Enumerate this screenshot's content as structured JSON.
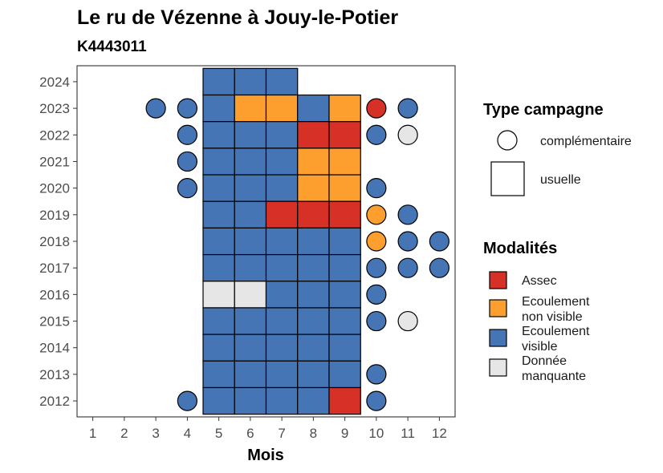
{
  "chart_data": {
    "type": "heatmap",
    "title": "Le ru de Vézenne à Jouy-le-Potier",
    "subtitle": "K4443011",
    "xlabel": "Mois",
    "ylabel": "",
    "x": [
      1,
      2,
      3,
      4,
      5,
      6,
      7,
      8,
      9,
      10,
      11,
      12
    ],
    "y": [
      2012,
      2013,
      2014,
      2015,
      2016,
      2017,
      2018,
      2019,
      2020,
      2021,
      2022,
      2023,
      2024
    ],
    "xlim": [
      0.5,
      12.5
    ],
    "ylim": [
      2011.4,
      2024.6
    ],
    "grid": false,
    "colors": {
      "assec": "#d73027",
      "ecoulement_non_visible": "#fd9f2e",
      "ecoulement_visible": "#4575b4",
      "donnee_manquante": "#e6e6e6"
    },
    "legend": {
      "placement": "right",
      "shape_title": "Type campagne",
      "shapes": [
        {
          "key": "complementaire",
          "label": "complémentaire"
        },
        {
          "key": "usuelle",
          "label": "usuelle"
        }
      ],
      "fill_title": "Modalités",
      "fills": [
        {
          "key": "assec",
          "label_lines": [
            "Assec"
          ]
        },
        {
          "key": "ecoulement_non_visible",
          "label_lines": [
            "Ecoulement",
            "non visible"
          ]
        },
        {
          "key": "ecoulement_visible",
          "label_lines": [
            "Ecoulement",
            "visible"
          ]
        },
        {
          "key": "donnee_manquante",
          "label_lines": [
            "Donnée",
            "manquante"
          ]
        }
      ]
    },
    "points": [
      {
        "year": 2024,
        "month": 5,
        "type": "usuelle",
        "modalite": "ecoulement_visible"
      },
      {
        "year": 2024,
        "month": 6,
        "type": "usuelle",
        "modalite": "ecoulement_visible"
      },
      {
        "year": 2024,
        "month": 7,
        "type": "usuelle",
        "modalite": "ecoulement_visible"
      },
      {
        "year": 2023,
        "month": 3,
        "type": "complementaire",
        "modalite": "ecoulement_visible"
      },
      {
        "year": 2023,
        "month": 4,
        "type": "complementaire",
        "modalite": "ecoulement_visible"
      },
      {
        "year": 2023,
        "month": 5,
        "type": "usuelle",
        "modalite": "ecoulement_visible"
      },
      {
        "year": 2023,
        "month": 6,
        "type": "usuelle",
        "modalite": "ecoulement_non_visible"
      },
      {
        "year": 2023,
        "month": 7,
        "type": "usuelle",
        "modalite": "ecoulement_non_visible"
      },
      {
        "year": 2023,
        "month": 8,
        "type": "usuelle",
        "modalite": "ecoulement_visible"
      },
      {
        "year": 2023,
        "month": 9,
        "type": "usuelle",
        "modalite": "ecoulement_non_visible"
      },
      {
        "year": 2023,
        "month": 10,
        "type": "complementaire",
        "modalite": "assec"
      },
      {
        "year": 2023,
        "month": 11,
        "type": "complementaire",
        "modalite": "ecoulement_visible"
      },
      {
        "year": 2022,
        "month": 4,
        "type": "complementaire",
        "modalite": "ecoulement_visible"
      },
      {
        "year": 2022,
        "month": 5,
        "type": "usuelle",
        "modalite": "ecoulement_visible"
      },
      {
        "year": 2022,
        "month": 6,
        "type": "usuelle",
        "modalite": "ecoulement_visible"
      },
      {
        "year": 2022,
        "month": 7,
        "type": "usuelle",
        "modalite": "ecoulement_visible"
      },
      {
        "year": 2022,
        "month": 8,
        "type": "usuelle",
        "modalite": "assec"
      },
      {
        "year": 2022,
        "month": 9,
        "type": "usuelle",
        "modalite": "assec"
      },
      {
        "year": 2022,
        "month": 10,
        "type": "complementaire",
        "modalite": "ecoulement_visible"
      },
      {
        "year": 2022,
        "month": 11,
        "type": "complementaire",
        "modalite": "donnee_manquante"
      },
      {
        "year": 2021,
        "month": 4,
        "type": "complementaire",
        "modalite": "ecoulement_visible"
      },
      {
        "year": 2021,
        "month": 5,
        "type": "usuelle",
        "modalite": "ecoulement_visible"
      },
      {
        "year": 2021,
        "month": 6,
        "type": "usuelle",
        "modalite": "ecoulement_visible"
      },
      {
        "year": 2021,
        "month": 7,
        "type": "usuelle",
        "modalite": "ecoulement_visible"
      },
      {
        "year": 2021,
        "month": 8,
        "type": "usuelle",
        "modalite": "ecoulement_non_visible"
      },
      {
        "year": 2021,
        "month": 9,
        "type": "usuelle",
        "modalite": "ecoulement_non_visible"
      },
      {
        "year": 2020,
        "month": 4,
        "type": "complementaire",
        "modalite": "ecoulement_visible"
      },
      {
        "year": 2020,
        "month": 5,
        "type": "usuelle",
        "modalite": "ecoulement_visible"
      },
      {
        "year": 2020,
        "month": 6,
        "type": "usuelle",
        "modalite": "ecoulement_visible"
      },
      {
        "year": 2020,
        "month": 7,
        "type": "usuelle",
        "modalite": "ecoulement_visible"
      },
      {
        "year": 2020,
        "month": 8,
        "type": "usuelle",
        "modalite": "ecoulement_non_visible"
      },
      {
        "year": 2020,
        "month": 9,
        "type": "usuelle",
        "modalite": "ecoulement_non_visible"
      },
      {
        "year": 2020,
        "month": 10,
        "type": "complementaire",
        "modalite": "ecoulement_visible"
      },
      {
        "year": 2019,
        "month": 5,
        "type": "usuelle",
        "modalite": "ecoulement_visible"
      },
      {
        "year": 2019,
        "month": 6,
        "type": "usuelle",
        "modalite": "ecoulement_visible"
      },
      {
        "year": 2019,
        "month": 7,
        "type": "usuelle",
        "modalite": "assec"
      },
      {
        "year": 2019,
        "month": 8,
        "type": "usuelle",
        "modalite": "assec"
      },
      {
        "year": 2019,
        "month": 9,
        "type": "usuelle",
        "modalite": "assec"
      },
      {
        "year": 2019,
        "month": 10,
        "type": "complementaire",
        "modalite": "ecoulement_non_visible"
      },
      {
        "year": 2019,
        "month": 11,
        "type": "complementaire",
        "modalite": "ecoulement_visible"
      },
      {
        "year": 2018,
        "month": 5,
        "type": "usuelle",
        "modalite": "ecoulement_visible"
      },
      {
        "year": 2018,
        "month": 6,
        "type": "usuelle",
        "modalite": "ecoulement_visible"
      },
      {
        "year": 2018,
        "month": 7,
        "type": "usuelle",
        "modalite": "ecoulement_visible"
      },
      {
        "year": 2018,
        "month": 8,
        "type": "usuelle",
        "modalite": "ecoulement_visible"
      },
      {
        "year": 2018,
        "month": 9,
        "type": "usuelle",
        "modalite": "ecoulement_visible"
      },
      {
        "year": 2018,
        "month": 10,
        "type": "complementaire",
        "modalite": "ecoulement_non_visible"
      },
      {
        "year": 2018,
        "month": 11,
        "type": "complementaire",
        "modalite": "ecoulement_visible"
      },
      {
        "year": 2018,
        "month": 12,
        "type": "complementaire",
        "modalite": "ecoulement_visible"
      },
      {
        "year": 2017,
        "month": 5,
        "type": "usuelle",
        "modalite": "ecoulement_visible"
      },
      {
        "year": 2017,
        "month": 6,
        "type": "usuelle",
        "modalite": "ecoulement_visible"
      },
      {
        "year": 2017,
        "month": 7,
        "type": "usuelle",
        "modalite": "ecoulement_visible"
      },
      {
        "year": 2017,
        "month": 8,
        "type": "usuelle",
        "modalite": "ecoulement_visible"
      },
      {
        "year": 2017,
        "month": 9,
        "type": "usuelle",
        "modalite": "ecoulement_visible"
      },
      {
        "year": 2017,
        "month": 10,
        "type": "complementaire",
        "modalite": "ecoulement_visible"
      },
      {
        "year": 2017,
        "month": 11,
        "type": "complementaire",
        "modalite": "ecoulement_visible"
      },
      {
        "year": 2017,
        "month": 12,
        "type": "complementaire",
        "modalite": "ecoulement_visible"
      },
      {
        "year": 2016,
        "month": 5,
        "type": "usuelle",
        "modalite": "donnee_manquante"
      },
      {
        "year": 2016,
        "month": 6,
        "type": "usuelle",
        "modalite": "donnee_manquante"
      },
      {
        "year": 2016,
        "month": 7,
        "type": "usuelle",
        "modalite": "ecoulement_visible"
      },
      {
        "year": 2016,
        "month": 8,
        "type": "usuelle",
        "modalite": "ecoulement_visible"
      },
      {
        "year": 2016,
        "month": 9,
        "type": "usuelle",
        "modalite": "ecoulement_visible"
      },
      {
        "year": 2016,
        "month": 10,
        "type": "complementaire",
        "modalite": "ecoulement_visible"
      },
      {
        "year": 2015,
        "month": 5,
        "type": "usuelle",
        "modalite": "ecoulement_visible"
      },
      {
        "year": 2015,
        "month": 6,
        "type": "usuelle",
        "modalite": "ecoulement_visible"
      },
      {
        "year": 2015,
        "month": 7,
        "type": "usuelle",
        "modalite": "ecoulement_visible"
      },
      {
        "year": 2015,
        "month": 8,
        "type": "usuelle",
        "modalite": "ecoulement_visible"
      },
      {
        "year": 2015,
        "month": 9,
        "type": "usuelle",
        "modalite": "ecoulement_visible"
      },
      {
        "year": 2015,
        "month": 10,
        "type": "complementaire",
        "modalite": "ecoulement_visible"
      },
      {
        "year": 2015,
        "month": 11,
        "type": "complementaire",
        "modalite": "donnee_manquante"
      },
      {
        "year": 2014,
        "month": 5,
        "type": "usuelle",
        "modalite": "ecoulement_visible"
      },
      {
        "year": 2014,
        "month": 6,
        "type": "usuelle",
        "modalite": "ecoulement_visible"
      },
      {
        "year": 2014,
        "month": 7,
        "type": "usuelle",
        "modalite": "ecoulement_visible"
      },
      {
        "year": 2014,
        "month": 8,
        "type": "usuelle",
        "modalite": "ecoulement_visible"
      },
      {
        "year": 2014,
        "month": 9,
        "type": "usuelle",
        "modalite": "ecoulement_visible"
      },
      {
        "year": 2013,
        "month": 5,
        "type": "usuelle",
        "modalite": "ecoulement_visible"
      },
      {
        "year": 2013,
        "month": 6,
        "type": "usuelle",
        "modalite": "ecoulement_visible"
      },
      {
        "year": 2013,
        "month": 7,
        "type": "usuelle",
        "modalite": "ecoulement_visible"
      },
      {
        "year": 2013,
        "month": 8,
        "type": "usuelle",
        "modalite": "ecoulement_visible"
      },
      {
        "year": 2013,
        "month": 9,
        "type": "usuelle",
        "modalite": "ecoulement_visible"
      },
      {
        "year": 2013,
        "month": 10,
        "type": "complementaire",
        "modalite": "ecoulement_visible"
      },
      {
        "year": 2012,
        "month": 4,
        "type": "complementaire",
        "modalite": "ecoulement_visible"
      },
      {
        "year": 2012,
        "month": 5,
        "type": "usuelle",
        "modalite": "ecoulement_visible"
      },
      {
        "year": 2012,
        "month": 6,
        "type": "usuelle",
        "modalite": "ecoulement_visible"
      },
      {
        "year": 2012,
        "month": 7,
        "type": "usuelle",
        "modalite": "ecoulement_visible"
      },
      {
        "year": 2012,
        "month": 8,
        "type": "usuelle",
        "modalite": "ecoulement_visible"
      },
      {
        "year": 2012,
        "month": 9,
        "type": "usuelle",
        "modalite": "assec"
      },
      {
        "year": 2012,
        "month": 10,
        "type": "complementaire",
        "modalite": "ecoulement_visible"
      }
    ]
  }
}
